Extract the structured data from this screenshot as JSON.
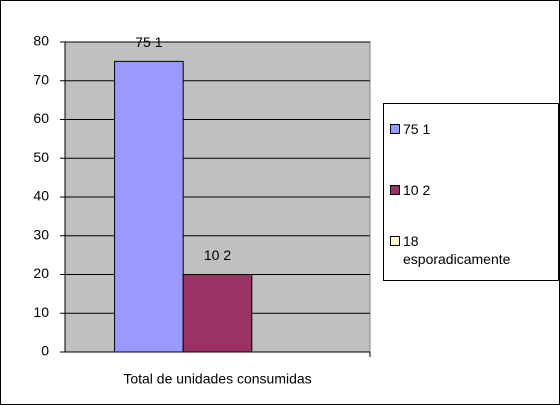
{
  "chart_data": {
    "type": "bar",
    "categories": [
      "Total de unidades consumidas"
    ],
    "series": [
      {
        "name": "75 1",
        "color": "#9999ff",
        "values": [
          75
        ]
      },
      {
        "name": "10 2",
        "color": "#993366",
        "values": [
          20
        ]
      },
      {
        "name": "18 esporadicamente",
        "color": "#ffffcc",
        "values": [
          0
        ]
      }
    ],
    "ylim": [
      0,
      80
    ],
    "yticks": [
      0,
      10,
      20,
      30,
      40,
      50,
      60,
      70,
      80
    ],
    "grid": true,
    "plot_background": "#c0c0c0",
    "legend": "right"
  }
}
